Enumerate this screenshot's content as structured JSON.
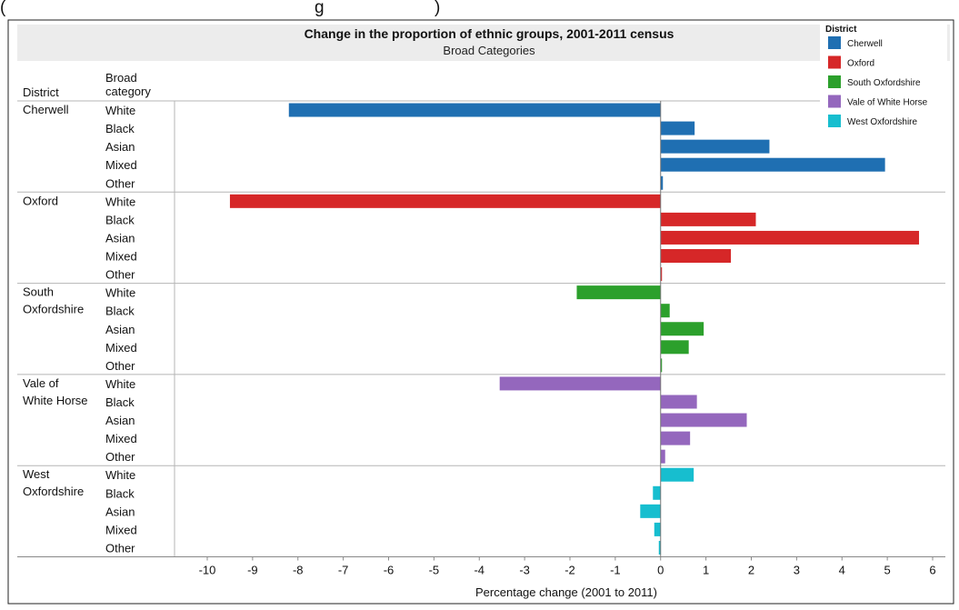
{
  "caption_fragment": "(",
  "caption_fragment_2": "g",
  "caption_fragment_3": ")",
  "chart_data": {
    "type": "bar",
    "orientation": "horizontal",
    "title": "Change in the proportion of ethnic groups, 2001-2011 census",
    "subtitle": "Broad Categories",
    "xlabel": "Percentage change (2001 to 2011)",
    "row_headers": {
      "district": "District",
      "category": "Broad category"
    },
    "xlim": [
      -10.5,
      6.2
    ],
    "xticks": [
      -10,
      -9,
      -8,
      -7,
      -6,
      -5,
      -4,
      -3,
      -2,
      -1,
      0,
      1,
      2,
      3,
      4,
      5,
      6
    ],
    "legend": {
      "title": "District",
      "position": "top-right",
      "entries": [
        {
          "label": "Cherwell",
          "color": "#1f6fb2"
        },
        {
          "label": "Oxford",
          "color": "#d62728"
        },
        {
          "label": "South Oxfordshire",
          "color": "#2ca02c"
        },
        {
          "label": "Vale of White Horse",
          "color": "#9467bd"
        },
        {
          "label": "West Oxfordshire",
          "color": "#17becf"
        }
      ]
    },
    "groups": [
      {
        "district": "Cherwell",
        "district_lines": [
          "Cherwell"
        ],
        "color": "#1f6fb2",
        "rows": [
          {
            "category": "White",
            "value": -8.2
          },
          {
            "category": "Black",
            "value": 0.75
          },
          {
            "category": "Asian",
            "value": 2.4
          },
          {
            "category": "Mixed",
            "value": 4.95
          },
          {
            "category": "Other",
            "value": 0.05
          }
        ]
      },
      {
        "district": "Oxford",
        "district_lines": [
          "Oxford"
        ],
        "color": "#d62728",
        "rows": [
          {
            "category": "White",
            "value": -9.5
          },
          {
            "category": "Black",
            "value": 2.1
          },
          {
            "category": "Asian",
            "value": 5.7
          },
          {
            "category": "Mixed",
            "value": 1.55
          },
          {
            "category": "Other",
            "value": 0.03
          }
        ]
      },
      {
        "district": "South Oxfordshire",
        "district_lines": [
          "South",
          "Oxfordshire"
        ],
        "color": "#2ca02c",
        "rows": [
          {
            "category": "White",
            "value": -1.85
          },
          {
            "category": "Black",
            "value": 0.2
          },
          {
            "category": "Asian",
            "value": 0.95
          },
          {
            "category": "Mixed",
            "value": 0.62
          },
          {
            "category": "Other",
            "value": 0.02
          }
        ]
      },
      {
        "district": "Vale of White Horse",
        "district_lines": [
          "Vale of",
          "White Horse"
        ],
        "color": "#9467bd",
        "rows": [
          {
            "category": "White",
            "value": -3.55
          },
          {
            "category": "Black",
            "value": 0.8
          },
          {
            "category": "Asian",
            "value": 1.9
          },
          {
            "category": "Mixed",
            "value": 0.65
          },
          {
            "category": "Other",
            "value": 0.1
          }
        ]
      },
      {
        "district": "West Oxfordshire",
        "district_lines": [
          "West",
          "Oxfordshire"
        ],
        "color": "#17becf",
        "rows": [
          {
            "category": "White",
            "value": 0.73
          },
          {
            "category": "Black",
            "value": -0.17
          },
          {
            "category": "Asian",
            "value": -0.45
          },
          {
            "category": "Mixed",
            "value": -0.14
          },
          {
            "category": "Other",
            "value": -0.04
          }
        ]
      }
    ]
  }
}
